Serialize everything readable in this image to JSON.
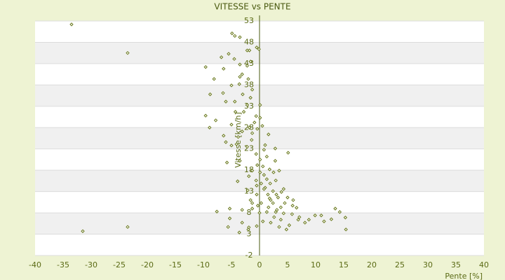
{
  "chart_data": {
    "type": "scatter",
    "title": "VITESSE vs PENTE",
    "x_label": "Pente [%]",
    "y_label": "Vitesse [km/h]",
    "color": "#6b7a1f",
    "xlim": [
      -40,
      40
    ],
    "xticks": [
      -40,
      -35,
      -30,
      -25,
      -20,
      -15,
      -10,
      -5,
      0,
      5,
      10,
      15,
      20,
      25,
      30,
      35,
      40
    ],
    "ylim": [
      -2,
      53
    ],
    "yticks": [
      53,
      48,
      43,
      38,
      33,
      28,
      23,
      18,
      13,
      8,
      3,
      -2
    ],
    "x": [
      -33.5,
      -23.5,
      -31.5,
      -23.5,
      -4.9,
      -4.4,
      -3.5,
      -0.5,
      -0.1,
      -2.2,
      -1.8,
      -5.5,
      -6.8,
      -4.5,
      -9.6,
      -6.4,
      -2.2,
      -3.1,
      -8.1,
      -2,
      -5,
      -3.6,
      -6.5,
      -8.8,
      -3,
      -1.3,
      -4.4,
      -2.2,
      0.1,
      -4.3,
      -9.6,
      -0.6,
      0.1,
      -7.8,
      -5,
      -1.8,
      -8.9,
      -3.1,
      -0.4,
      0.5,
      -6.4,
      -3.8,
      1.6,
      -6,
      -4.1,
      -1.4,
      -2.2,
      -5,
      0.8,
      2.8,
      5.1,
      -0.6,
      1.3,
      -5.8,
      -3.5,
      0.1,
      2.8,
      1.8,
      3.5,
      -1.3,
      0.6,
      0.8,
      -3.9,
      -0.6,
      0.3,
      1.9,
      2.9,
      1,
      4.3,
      -2.1,
      2.4,
      -0.5,
      1.5,
      3.3,
      5,
      6,
      -1.6,
      0.3,
      2.4,
      3.8,
      6.6,
      -1.3,
      -7.6,
      -5.3,
      -3.1,
      1.3,
      2.9,
      4.3,
      5.8,
      7.1,
      8.8,
      11,
      13.5,
      14.3,
      12.8,
      15.3,
      15.4,
      8.1,
      0.6,
      2,
      3.8,
      3.5,
      5.3,
      -0.5,
      -1.9,
      -5.3,
      -5.6,
      -3.1,
      -3.6,
      -2,
      4.8,
      6.9,
      11.5,
      9.9,
      2.6,
      0,
      -0.3,
      1.6,
      -1.3,
      3,
      3.9,
      2,
      -0.5,
      1.3,
      -1.9,
      0.1,
      2.5,
      -0.4,
      1,
      -1.3,
      -0.9,
      -2.8,
      -1.6,
      -3.5,
      -1.6,
      -3.5,
      -6,
      0.8,
      1.8,
      4.5,
      5.9,
      3.1
    ],
    "values": [
      52.2,
      45.5,
      3.7,
      4.7,
      50.1,
      49.5,
      49.2,
      46.8,
      46.4,
      46.1,
      46.1,
      45.3,
      44.5,
      44.1,
      42.2,
      41.8,
      42.5,
      40.5,
      39.4,
      39.4,
      37.9,
      38.2,
      36.1,
      35.8,
      35.8,
      36.9,
      34.1,
      33.3,
      33.3,
      31.7,
      30.8,
      30.7,
      30.3,
      29.7,
      28.7,
      28,
      28,
      27.1,
      27.7,
      28.4,
      26.1,
      25.8,
      26.4,
      24.6,
      24.1,
      25.1,
      23.5,
      23.8,
      22.8,
      23.1,
      22.1,
      21.8,
      21.2,
      19.8,
      20.2,
      20.5,
      20.2,
      18.2,
      17.9,
      17.9,
      18.9,
      16.9,
      15.4,
      15.6,
      14.9,
      14.9,
      15.6,
      13.9,
      13.6,
      13.3,
      13.1,
      12.3,
      12.3,
      11.6,
      11.6,
      11,
      11,
      10.3,
      10.3,
      9.3,
      9.2,
      9,
      8.3,
      9,
      8.7,
      8.2,
      8.2,
      7.9,
      7.7,
      7,
      6.4,
      7.4,
      9,
      8.2,
      6.5,
      6.9,
      4.1,
      5.7,
      6,
      5.7,
      6.4,
      4.7,
      5.1,
      4.9,
      4.6,
      6.7,
      4.7,
      5.7,
      3.4,
      4.1,
      4.1,
      6.4,
      6,
      7.4,
      7,
      8,
      9.7,
      9.3,
      10.3,
      12.3,
      12.9,
      11,
      14.4,
      15.9,
      16.6,
      17.5,
      17.5,
      19.2,
      23.9,
      26.7,
      29.2,
      31.7,
      35,
      39.9,
      43.5,
      42.8,
      34.1,
      13.6,
      11.4,
      10.3,
      9.7,
      8.7
    ]
  }
}
